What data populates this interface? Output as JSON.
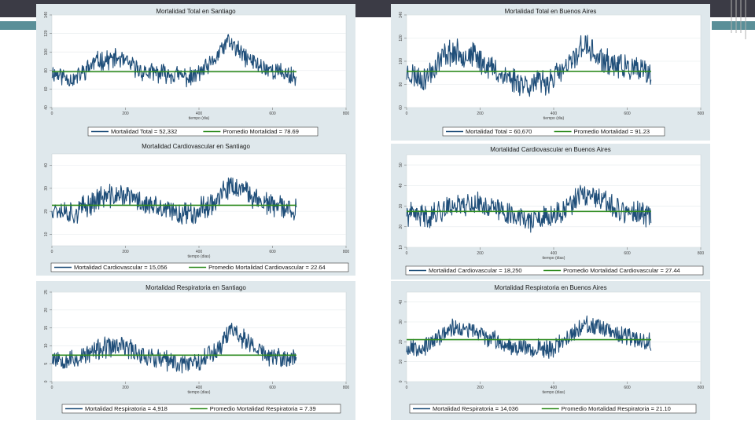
{
  "chart_data": [
    {
      "type": "line",
      "title": "Mortalidad Total en Santiago",
      "xlabel": "tiempo (dia)",
      "xlim": [
        0,
        800
      ],
      "ylim": [
        40,
        140
      ],
      "xticks": [
        "0",
        "200",
        "400",
        "600",
        "800"
      ],
      "yticks": [
        "40",
        "60",
        "80",
        "100",
        "120",
        "140"
      ],
      "x_end": 665,
      "mean": 78.69,
      "legend": [
        "Mortalidad Total = 52,332",
        "Promedio Mortalidad = 78.69"
      ],
      "series": [
        {
          "name": "Mortalidad Total",
          "color": "#1f4e79",
          "profile": [
            [
              0,
              78
            ],
            [
              60,
              70
            ],
            [
              120,
              90
            ],
            [
              180,
              93
            ],
            [
              250,
              78
            ],
            [
              330,
              76
            ],
            [
              380,
              72
            ],
            [
              430,
              85
            ],
            [
              480,
              112
            ],
            [
              520,
              96
            ],
            [
              570,
              84
            ],
            [
              620,
              78
            ],
            [
              665,
              73
            ]
          ],
          "noise": 9,
          "seed": 11
        }
      ],
      "mean_color": "#2e8b1f"
    },
    {
      "type": "line",
      "title": "Mortalidad Total en Buenos Aires",
      "xlabel": "tiempo (dia)",
      "xlim": [
        0,
        800
      ],
      "ylim": [
        60,
        140
      ],
      "xticks": [
        "0",
        "200",
        "400",
        "600",
        "800"
      ],
      "yticks": [
        "60",
        "80",
        "100",
        "120",
        "140"
      ],
      "x_end": 665,
      "mean": 91.23,
      "legend": [
        "Mortalidad Total = 60,670",
        "Promedio Mortalidad = 91.23"
      ],
      "series": [
        {
          "name": "Mortalidad Total",
          "color": "#1f4e79",
          "profile": [
            [
              0,
              90
            ],
            [
              50,
              85
            ],
            [
              110,
              108
            ],
            [
              180,
              105
            ],
            [
              260,
              88
            ],
            [
              330,
              80
            ],
            [
              380,
              82
            ],
            [
              440,
              95
            ],
            [
              480,
              115
            ],
            [
              530,
              100
            ],
            [
              600,
              94
            ],
            [
              665,
              88
            ]
          ],
          "noise": 10,
          "seed": 23
        }
      ],
      "mean_color": "#2e8b1f"
    },
    {
      "type": "line",
      "title": "Mortalidad Cardiovascular en Santiago",
      "xlabel": "tiempo (dias)",
      "xlim": [
        0,
        800
      ],
      "ylim": [
        5,
        45
      ],
      "xticks": [
        "0",
        "200",
        "400",
        "600",
        "800"
      ],
      "yticks": [
        "10",
        "20",
        "30",
        "40"
      ],
      "x_end": 665,
      "mean": 22.64,
      "legend": [
        "Mortalidad Cardiovascular = 15,056",
        "Promedio Mortalidad Cardiovascular = 22.64"
      ],
      "series": [
        {
          "name": "Mortalidad Cardiovascular",
          "color": "#1f4e79",
          "profile": [
            [
              0,
              22
            ],
            [
              60,
              19
            ],
            [
              130,
              26
            ],
            [
              200,
              27
            ],
            [
              270,
              22
            ],
            [
              340,
              19
            ],
            [
              390,
              20
            ],
            [
              440,
              24
            ],
            [
              490,
              31
            ],
            [
              540,
              27
            ],
            [
              600,
              22
            ],
            [
              665,
              21
            ]
          ],
          "noise": 4.5,
          "seed": 37
        }
      ],
      "mean_color": "#2e8b1f"
    },
    {
      "type": "line",
      "title": "Mortalidad Cardiovascular en Buenos Aires",
      "xlabel": "tiempo (dias)",
      "xlim": [
        0,
        800
      ],
      "ylim": [
        10,
        55
      ],
      "xticks": [
        "0",
        "200",
        "400",
        "600",
        "800"
      ],
      "yticks": [
        "10",
        "20",
        "30",
        "40",
        "50"
      ],
      "x_end": 665,
      "mean": 27.44,
      "legend": [
        "Mortalidad Cardiovascular = 18,250",
        "Promedio Mortalidad Cardiovascular = 27.44"
      ],
      "series": [
        {
          "name": "Mortalidad Cardiovascular",
          "color": "#1f4e79",
          "profile": [
            [
              0,
              26
            ],
            [
              60,
              25
            ],
            [
              130,
              31
            ],
            [
              200,
              31
            ],
            [
              270,
              27
            ],
            [
              340,
              23
            ],
            [
              390,
              24
            ],
            [
              440,
              29
            ],
            [
              480,
              36
            ],
            [
              530,
              32
            ],
            [
              600,
              27
            ],
            [
              665,
              25
            ]
          ],
          "noise": 5,
          "seed": 41
        }
      ],
      "mean_color": "#2e8b1f"
    },
    {
      "type": "line",
      "title": "Mortalidad Respiratoria en Santiago",
      "xlabel": "tiempo (dias)",
      "xlim": [
        0,
        800
      ],
      "ylim": [
        0,
        25
      ],
      "xticks": [
        "0",
        "200",
        "400",
        "600",
        "800"
      ],
      "yticks": [
        "0",
        "5",
        "10",
        "15",
        "20",
        "25"
      ],
      "x_end": 665,
      "mean": 7.39,
      "legend": [
        "Mortalidad Respiratoria = 4,918",
        "Promedio Mortalidad Respiratoria = 7.39"
      ],
      "series": [
        {
          "name": "Mortalidad Respiratoria",
          "color": "#1f4e79",
          "profile": [
            [
              0,
              7
            ],
            [
              60,
              6
            ],
            [
              130,
              9
            ],
            [
              190,
              10
            ],
            [
              260,
              7
            ],
            [
              340,
              5
            ],
            [
              400,
              6
            ],
            [
              450,
              9
            ],
            [
              490,
              15
            ],
            [
              530,
              11
            ],
            [
              590,
              7
            ],
            [
              665,
              6
            ]
          ],
          "noise": 2.6,
          "seed": 53
        }
      ],
      "mean_color": "#2e8b1f"
    },
    {
      "type": "line",
      "title": "Mortalidad Respiratoria en Buenos Aires",
      "xlabel": "tiempo (dias)",
      "xlim": [
        0,
        800
      ],
      "ylim": [
        0,
        45
      ],
      "xticks": [
        "0",
        "200",
        "400",
        "600",
        "800"
      ],
      "yticks": [
        "0",
        "10",
        "20",
        "30",
        "40"
      ],
      "x_end": 665,
      "mean": 21.1,
      "legend": [
        "Mortalidad Respiratoria = 14,036",
        "Promedio Mortalidad Respiratoria = 21.10"
      ],
      "series": [
        {
          "name": "Mortalidad Respiratoria",
          "color": "#1f4e79",
          "profile": [
            [
              0,
              17
            ],
            [
              60,
              18
            ],
            [
              120,
              27
            ],
            [
              190,
              25
            ],
            [
              260,
              19
            ],
            [
              330,
              17
            ],
            [
              390,
              16
            ],
            [
              440,
              22
            ],
            [
              480,
              29
            ],
            [
              530,
              26
            ],
            [
              600,
              22
            ],
            [
              665,
              20
            ]
          ],
          "noise": 4,
          "seed": 67
        }
      ],
      "mean_color": "#2e8b1f"
    }
  ]
}
